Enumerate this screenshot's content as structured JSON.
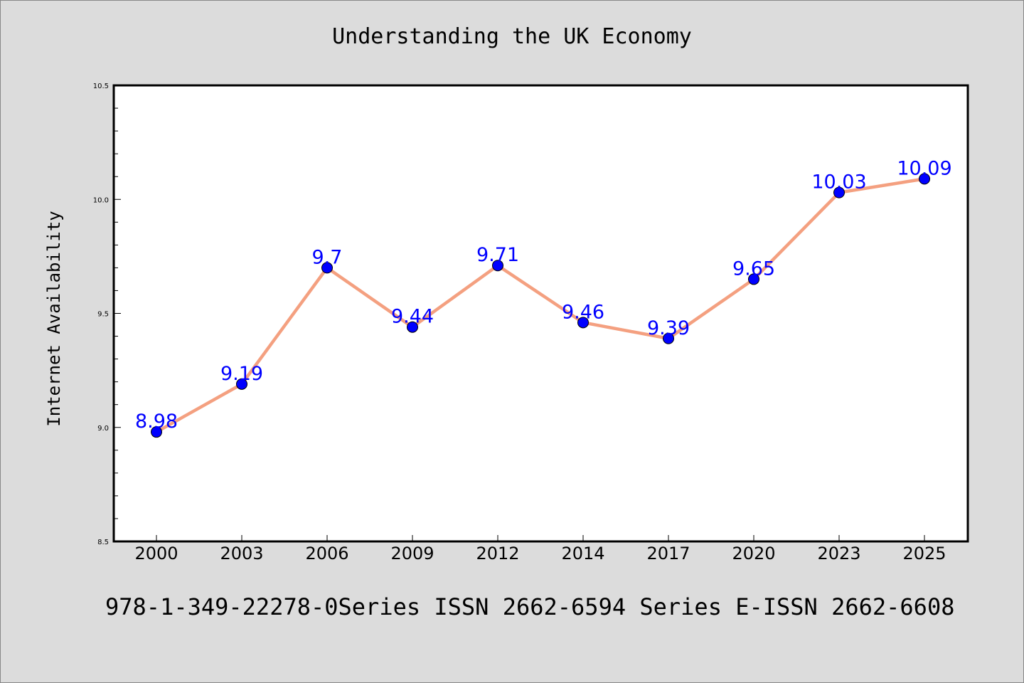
{
  "chart_data": {
    "type": "line",
    "title": "Understanding the UK Economy",
    "xlabel": "",
    "ylabel": "Internet Availability",
    "categories": [
      "2000",
      "2003",
      "2006",
      "2009",
      "2012",
      "2014",
      "2017",
      "2020",
      "2023",
      "2025"
    ],
    "values": [
      8.98,
      9.19,
      9.7,
      9.44,
      9.71,
      9.46,
      9.39,
      9.65,
      10.03,
      10.09
    ],
    "value_labels": [
      "8.98",
      "9.19",
      "9.7",
      "9.44",
      "9.71",
      "9.46",
      "9.39",
      "9.65",
      "10.03",
      "10.09"
    ],
    "ylim": [
      8.5,
      10.5
    ],
    "y_ticks": [
      "8.5",
      "9.0",
      "9.5",
      "10.0",
      "10.5"
    ],
    "grid": false,
    "colors": {
      "line": "#f4a080",
      "marker": "#0000ff",
      "data_label": "#0000ff",
      "background": "#dcdcdc",
      "plot_background": "#ffffff"
    }
  },
  "footer": {
    "text": "978-1-349-22278-0Series ISSN 2662-6594 Series E-ISSN 2662-6608"
  }
}
